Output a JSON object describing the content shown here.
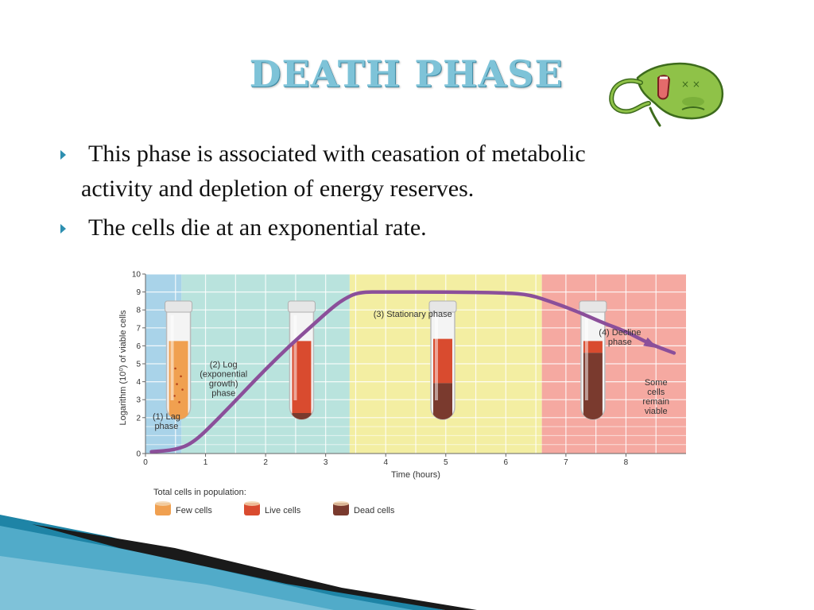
{
  "slide": {
    "title": "DEATH PHASE",
    "bullets": [
      {
        "line1": "This phase is associated with ceasation of metabolic",
        "line2": "activity and depletion of energy reserves."
      },
      {
        "line1": "The cells die at an exponential rate.",
        "line2": ""
      }
    ],
    "mascot_icon": "bacterium-cartoon-icon",
    "accent_color": "#2d8fb0"
  },
  "chart_data": {
    "type": "line",
    "xlabel": "Time (hours)",
    "ylabel": "Logarithm (10⁰) of viable cells",
    "x_ticks": [
      "0",
      "1",
      "2",
      "3",
      "4",
      "5",
      "6",
      "7",
      "8"
    ],
    "y_ticks": [
      "0",
      "2",
      "3",
      "4",
      "5",
      "6",
      "7",
      "8",
      "9",
      "10"
    ],
    "y_tick_values": [
      0,
      2,
      3,
      4,
      5,
      6,
      7,
      8,
      9,
      10
    ],
    "xlim": [
      0,
      9
    ],
    "ylim": [
      0,
      10
    ],
    "grid": true,
    "phases": [
      {
        "label_lines": [
          "(1) Lag",
          "phase"
        ],
        "start": 0,
        "end": 0.6,
        "color": "#a9d3e9"
      },
      {
        "label_lines": [
          "(2) Log",
          "(exponential",
          "growth)",
          "phase"
        ],
        "start": 0.6,
        "end": 3.4,
        "color": "#b9e3dd"
      },
      {
        "label_lines": [
          "(3) Stationary phase"
        ],
        "start": 3.4,
        "end": 6.6,
        "color": "#f3eea2"
      },
      {
        "label_lines": [
          "(4) Decline",
          "phase"
        ],
        "start": 6.6,
        "end": 9,
        "color": "#f5a9a1"
      }
    ],
    "series": [
      {
        "x": [
          0.1,
          0.5,
          0.8,
          1.2,
          1.6,
          2.0,
          2.4,
          2.8,
          3.1,
          3.3,
          3.55,
          4.0,
          5.0,
          6.0,
          6.4,
          6.8,
          7.2,
          7.6,
          8.0,
          8.4,
          8.8
        ],
        "y": [
          0.1,
          0.2,
          0.6,
          1.9,
          3.3,
          4.7,
          6.0,
          7.2,
          8.1,
          8.6,
          9.0,
          9.0,
          9.0,
          8.95,
          8.85,
          8.4,
          7.9,
          7.3,
          6.8,
          6.1,
          5.6
        ],
        "color": "#8b4f9a"
      }
    ],
    "annotations": [
      {
        "text_lines": [
          "Some",
          "cells",
          "remain",
          "viable"
        ],
        "x": 8.5,
        "y": 3.8
      }
    ],
    "tubes": [
      {
        "x": 0.55,
        "fill": "few",
        "level": 0.72
      },
      {
        "x": 2.6,
        "fill": "live",
        "level": 0.72
      },
      {
        "x": 4.95,
        "fill": "live-dead",
        "level": 0.74,
        "dead_share": 0.45
      },
      {
        "x": 7.45,
        "fill": "live-dead",
        "level": 0.72,
        "dead_share": 0.85
      }
    ],
    "legend": {
      "title": "Total cells in population:",
      "placement": "bottom",
      "items": [
        {
          "label": "Few cells",
          "color": "#f0a050"
        },
        {
          "label": "Live cells",
          "color": "#d94b2f"
        },
        {
          "label": "Dead cells",
          "color": "#7a3a2e"
        }
      ]
    }
  }
}
